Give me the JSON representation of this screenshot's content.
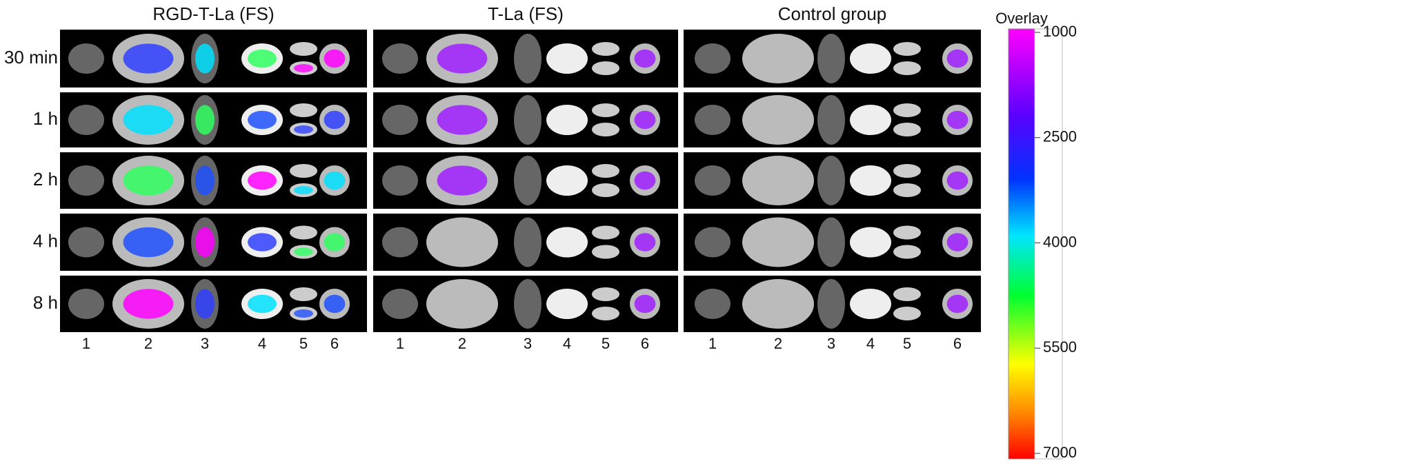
{
  "columns": [
    {
      "title": "RGD-T-La (FS)",
      "organs": [
        "1",
        "2",
        "3",
        "4",
        "5",
        "6"
      ]
    },
    {
      "title": "T-La (FS)",
      "organs": [
        "1",
        "2",
        "3",
        "4",
        "5",
        "6"
      ]
    },
    {
      "title": "Control group",
      "organs": [
        "1",
        "2",
        "3",
        "4",
        "5",
        "6"
      ]
    }
  ],
  "rows": [
    "30 min",
    "1 h",
    "2 h",
    "4 h",
    "8 h"
  ],
  "colorbar": {
    "title": "Overlay",
    "ticks": [
      1000,
      2500,
      4000,
      5500,
      7000
    ]
  }
}
